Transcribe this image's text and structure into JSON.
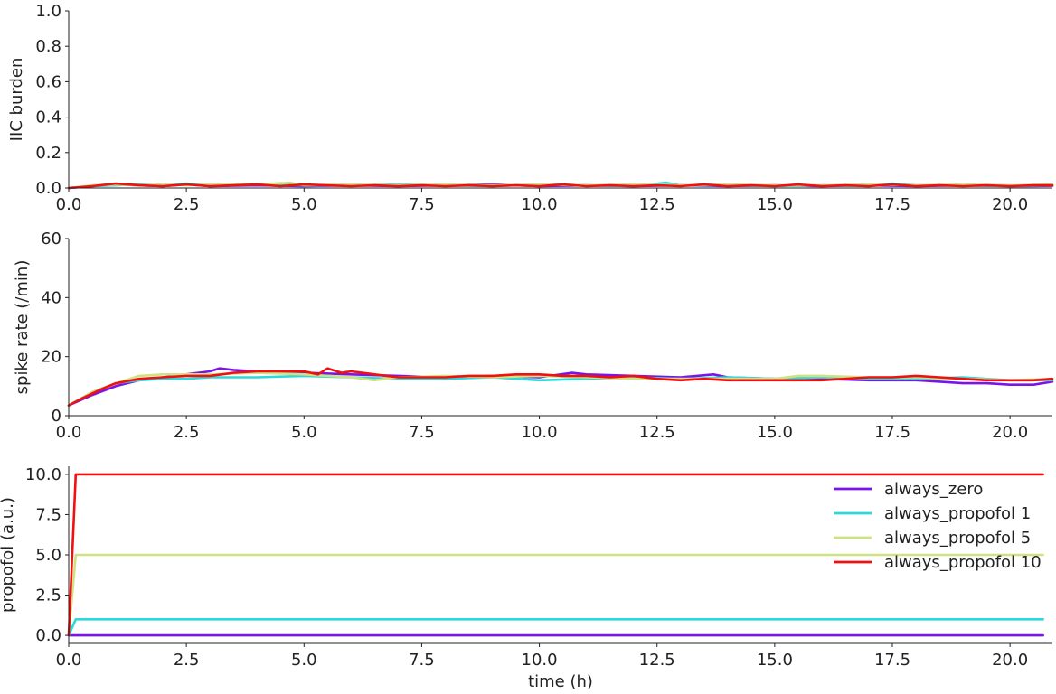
{
  "chart_data": [
    {
      "type": "line",
      "title": "",
      "xlabel": "",
      "ylabel": "IIC burden",
      "xlim": [
        0,
        20.9
      ],
      "ylim": [
        0,
        1.0
      ],
      "xticks": [
        "0.0",
        "2.5",
        "5.0",
        "7.5",
        "10.0",
        "12.5",
        "15.0",
        "17.5",
        "20.0"
      ],
      "yticks": [
        "0.0",
        "0.2",
        "0.4",
        "0.6",
        "0.8",
        "1.0"
      ],
      "grid": false,
      "series": [
        {
          "color": "#7b14e6",
          "x": [
            0,
            0.5,
            1.0,
            1.5,
            2.0,
            2.5,
            3.0,
            4.0,
            5.0,
            6.0,
            7.0,
            8.0,
            9.0,
            10.0,
            11.0,
            12.0,
            13.0,
            14.0,
            15.0,
            16.0,
            17.0,
            18.0,
            19.0,
            20.0,
            20.9
          ],
          "y": [
            0.0,
            0.01,
            0.02,
            0.015,
            0.01,
            0.02,
            0.01,
            0.015,
            0.01,
            0.015,
            0.01,
            0.015,
            0.02,
            0.01,
            0.015,
            0.01,
            0.015,
            0.01,
            0.015,
            0.01,
            0.015,
            0.01,
            0.015,
            0.01,
            0.012
          ]
        },
        {
          "color": "#2fd8d8",
          "x": [
            0,
            0.5,
            1.0,
            1.5,
            2.0,
            2.5,
            3.0,
            4.0,
            5.0,
            6.0,
            7.0,
            8.0,
            9.0,
            10.0,
            11.0,
            12.0,
            12.7,
            13.0,
            14.0,
            15.0,
            16.0,
            17.0,
            17.5,
            18.0,
            19.0,
            20.0,
            20.9
          ],
          "y": [
            0.0,
            0.01,
            0.015,
            0.02,
            0.015,
            0.025,
            0.015,
            0.02,
            0.015,
            0.015,
            0.02,
            0.015,
            0.01,
            0.02,
            0.015,
            0.01,
            0.03,
            0.015,
            0.015,
            0.01,
            0.015,
            0.01,
            0.025,
            0.015,
            0.015,
            0.01,
            0.015
          ]
        },
        {
          "color": "#cfe283",
          "x": [
            0,
            0.5,
            1.0,
            1.5,
            2.0,
            2.5,
            3.0,
            4.0,
            4.7,
            5.0,
            6.0,
            7.0,
            8.0,
            9.0,
            10.0,
            11.0,
            12.0,
            13.0,
            14.0,
            15.0,
            16.0,
            17.0,
            18.0,
            19.0,
            20.0,
            20.9
          ],
          "y": [
            0.0,
            0.015,
            0.02,
            0.015,
            0.02,
            0.015,
            0.02,
            0.02,
            0.03,
            0.015,
            0.02,
            0.015,
            0.02,
            0.015,
            0.02,
            0.015,
            0.02,
            0.015,
            0.02,
            0.015,
            0.015,
            0.02,
            0.015,
            0.02,
            0.015,
            0.02
          ]
        },
        {
          "color": "#f01010",
          "x": [
            0,
            0.5,
            1.0,
            1.5,
            2.0,
            2.5,
            3.0,
            3.5,
            4.0,
            4.5,
            5.0,
            5.5,
            6.0,
            6.5,
            7.0,
            7.5,
            8.0,
            8.5,
            9.0,
            9.5,
            10.0,
            10.5,
            11.0,
            11.5,
            12.0,
            12.5,
            13.0,
            13.5,
            14.0,
            14.5,
            15.0,
            15.5,
            16.0,
            16.5,
            17.0,
            17.5,
            18.0,
            18.5,
            19.0,
            19.5,
            20.0,
            20.5,
            20.9
          ],
          "y": [
            0.0,
            0.01,
            0.025,
            0.015,
            0.01,
            0.02,
            0.01,
            0.015,
            0.02,
            0.01,
            0.02,
            0.015,
            0.01,
            0.015,
            0.01,
            0.015,
            0.01,
            0.015,
            0.01,
            0.015,
            0.01,
            0.02,
            0.01,
            0.015,
            0.01,
            0.015,
            0.01,
            0.02,
            0.01,
            0.015,
            0.01,
            0.02,
            0.01,
            0.015,
            0.01,
            0.02,
            0.01,
            0.015,
            0.01,
            0.015,
            0.01,
            0.015,
            0.015
          ]
        }
      ]
    },
    {
      "type": "line",
      "title": "",
      "xlabel": "",
      "ylabel": "spike rate (/min)",
      "xlim": [
        0,
        20.9
      ],
      "ylim": [
        0,
        60
      ],
      "xticks": [
        "0.0",
        "2.5",
        "5.0",
        "7.5",
        "10.0",
        "12.5",
        "15.0",
        "17.5",
        "20.0"
      ],
      "yticks": [
        "0",
        "20",
        "40",
        "60"
      ],
      "grid": false,
      "series": [
        {
          "color": "#7b14e6",
          "x": [
            0,
            0.5,
            1.0,
            1.5,
            2.0,
            2.5,
            3.0,
            3.2,
            3.5,
            4.0,
            5.0,
            6.0,
            7.0,
            8.0,
            9.0,
            10.0,
            10.7,
            11.0,
            12.0,
            13.0,
            13.7,
            14.0,
            15.0,
            16.0,
            17.0,
            18.0,
            19.0,
            19.5,
            20.0,
            20.5,
            20.9
          ],
          "y": [
            3.5,
            7,
            10,
            12,
            13,
            14,
            15,
            16,
            15.5,
            15,
            14.5,
            14,
            13.5,
            13,
            13.5,
            13,
            14.5,
            14,
            13.5,
            13,
            14,
            13,
            12.5,
            12.5,
            12,
            12,
            11,
            11,
            10.5,
            10.5,
            11.5
          ]
        },
        {
          "color": "#2fd8d8",
          "x": [
            0,
            0.5,
            1.0,
            1.5,
            2.0,
            2.5,
            3.0,
            4.0,
            5.0,
            6.0,
            7.0,
            8.0,
            9.0,
            10.0,
            11.0,
            12.0,
            13.0,
            14.0,
            15.0,
            16.0,
            17.0,
            18.0,
            19.0,
            20.0,
            20.9
          ],
          "y": [
            3.5,
            8,
            11,
            12,
            12.5,
            12.5,
            13,
            13,
            13.5,
            13,
            12.5,
            12.5,
            13,
            12,
            12.5,
            13,
            12.5,
            13,
            12.5,
            13,
            12.5,
            12.5,
            13,
            12,
            12
          ]
        },
        {
          "color": "#cfe283",
          "x": [
            0,
            0.5,
            1.0,
            1.5,
            2.0,
            2.5,
            3.0,
            4.0,
            5.0,
            6.0,
            6.5,
            7.0,
            8.0,
            9.0,
            10.0,
            11.0,
            12.0,
            13.0,
            14.0,
            15.0,
            15.5,
            16.0,
            17.0,
            18.0,
            19.0,
            20.0,
            20.9
          ],
          "y": [
            3.5,
            8,
            11,
            13.5,
            14,
            14,
            14,
            14.5,
            14,
            13,
            12,
            13,
            13.5,
            13,
            13.5,
            13,
            12.5,
            12.5,
            12.5,
            12.5,
            13.5,
            13.5,
            13,
            13,
            12.5,
            12,
            12.5
          ]
        },
        {
          "color": "#f01010",
          "x": [
            0,
            0.3,
            0.7,
            1.0,
            1.5,
            2.0,
            2.5,
            3.0,
            3.5,
            4.0,
            4.5,
            5.0,
            5.3,
            5.5,
            5.8,
            6.0,
            6.5,
            7.0,
            7.5,
            8.0,
            8.5,
            9.0,
            9.5,
            10.0,
            10.5,
            11.0,
            11.5,
            12.0,
            12.5,
            13.0,
            13.5,
            14.0,
            14.5,
            15.0,
            15.5,
            16.0,
            16.5,
            17.0,
            17.5,
            18.0,
            18.5,
            19.0,
            19.5,
            20.0,
            20.5,
            20.9
          ],
          "y": [
            3.5,
            6,
            9,
            11,
            12.5,
            13,
            13.5,
            13.5,
            14.5,
            15,
            15,
            15,
            14,
            16,
            14.5,
            15,
            14,
            13,
            13,
            13,
            13.5,
            13.5,
            14,
            14,
            13.5,
            13.5,
            13,
            13.5,
            12.5,
            12,
            12.5,
            12,
            12,
            12,
            12,
            12,
            12.5,
            13,
            13,
            13.5,
            13,
            12.5,
            12,
            12,
            12,
            12.5
          ]
        }
      ]
    },
    {
      "type": "line",
      "title": "",
      "xlabel": "time (h)",
      "ylabel": "propofol (a.u.)",
      "xlim": [
        0,
        20.9
      ],
      "ylim": [
        -0.5,
        10.5
      ],
      "xticks": [
        "0.0",
        "2.5",
        "5.0",
        "7.5",
        "10.0",
        "12.5",
        "15.0",
        "17.5",
        "20.0"
      ],
      "yticks": [
        "0.0",
        "2.5",
        "5.0",
        "7.5",
        "10.0"
      ],
      "grid": false,
      "legend_position": "top-right",
      "series": [
        {
          "name": "always_zero",
          "color": "#7b14e6",
          "x": [
            0,
            0.15,
            20.7
          ],
          "y": [
            0,
            0,
            0
          ]
        },
        {
          "name": "always_propofol 1",
          "color": "#2fd8d8",
          "x": [
            0,
            0.15,
            20.7
          ],
          "y": [
            0,
            1,
            1
          ]
        },
        {
          "name": "always_propofol 5",
          "color": "#cfe283",
          "x": [
            0,
            0.15,
            20.7
          ],
          "y": [
            0,
            5,
            5
          ]
        },
        {
          "name": "always_propofol 10",
          "color": "#f01010",
          "x": [
            0,
            0.15,
            20.7
          ],
          "y": [
            0,
            10,
            10
          ]
        }
      ]
    }
  ]
}
